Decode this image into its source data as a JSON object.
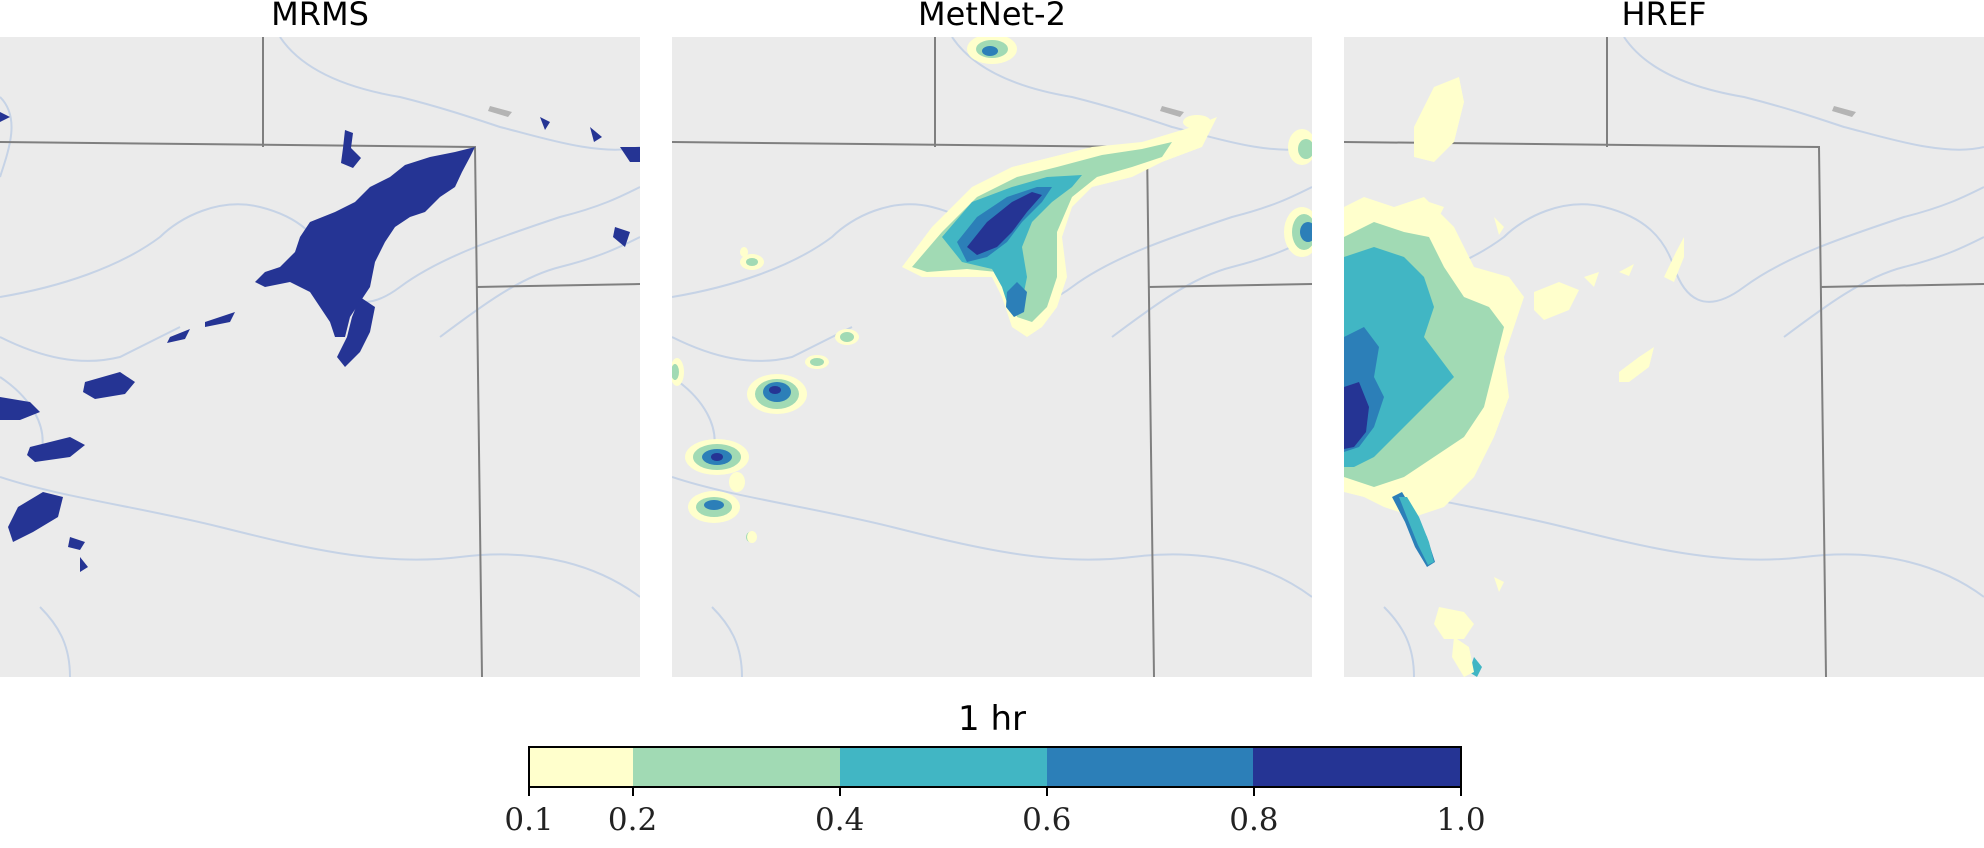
{
  "panels": [
    {
      "title": "MRMS"
    },
    {
      "title": "MetNet-2"
    },
    {
      "title": "HREF"
    }
  ],
  "colorbar": {
    "label": "1 hr",
    "ticks": [
      "0.1",
      "0.2",
      "0.4",
      "0.6",
      "0.8",
      "1.0"
    ],
    "bins": [
      {
        "from": 0.1,
        "to": 0.2,
        "color": "#ffffcc"
      },
      {
        "from": 0.2,
        "to": 0.4,
        "color": "#a1dab4"
      },
      {
        "from": 0.4,
        "to": 0.6,
        "color": "#41b6c4"
      },
      {
        "from": 0.6,
        "to": 0.8,
        "color": "#2c7fb8"
      },
      {
        "from": 0.8,
        "to": 1.0,
        "color": "#253494"
      }
    ]
  },
  "colors": {
    "background": "#ebebeb",
    "border": "#7f7f7f",
    "river": "#c6d3e6",
    "lake": "#b4b4b4"
  }
}
